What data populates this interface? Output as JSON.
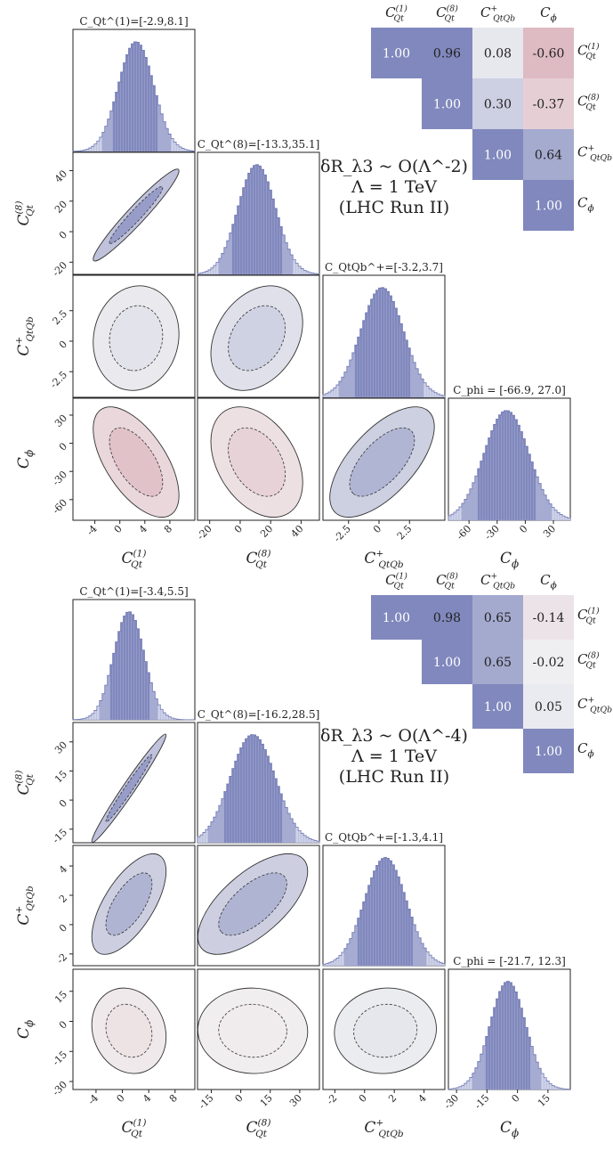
{
  "colors": {
    "blue_dark": "#8088bd",
    "blue_mid": "#a5abd1",
    "blue_light": "#cfd3e8",
    "axis": "#222222",
    "red_mid": "#dcb1bd",
    "red_strong": "#d49aa7"
  },
  "chart_data": [
    {
      "type": "corner_plot",
      "parameters": [
        "C_Qt^(1)",
        "C_Qt^(8)",
        "C_QtQb^+",
        "C_phi"
      ],
      "note_lines": [
        "δR_λ3 ~ O(Λ^-2)",
        "Λ = 1 TeV",
        "(LHC Run II)"
      ],
      "marginal_titles": [
        "C_Qt^(1)=[-2.9,8.1]",
        "C_Qt^(8)=[-13.3,35.1]",
        "C_QtQb^+=[-3.2,3.7]",
        "C_phi = [-66.9, 27.0]"
      ],
      "marginals": [
        {
          "mean": 2.6,
          "sigma": 2.8,
          "interval": [
            -2.9,
            8.1
          ],
          "xlim": [
            -7.5,
            12
          ]
        },
        {
          "mean": 10.9,
          "sigma": 12.3,
          "interval": [
            -13.3,
            35.1
          ],
          "xlim": [
            -28,
            52
          ]
        },
        {
          "mean": 0.25,
          "sigma": 1.75,
          "interval": [
            -3.2,
            3.7
          ],
          "xlim": [
            -4.6,
            5.4
          ]
        },
        {
          "mean": -20,
          "sigma": 24,
          "interval": [
            -66.9,
            27.0
          ],
          "xlim": [
            -82,
            48
          ]
        }
      ],
      "ticks": [
        [
          -4,
          0,
          4,
          8
        ],
        [
          -20,
          0,
          20,
          40
        ],
        [
          -2.5,
          0.0,
          2.5
        ],
        [
          -60,
          -30,
          0,
          30
        ]
      ],
      "correlation_matrix": [
        [
          1.0,
          0.96,
          0.08,
          -0.6
        ],
        [
          0.96,
          1.0,
          0.3,
          -0.37
        ],
        [
          0.08,
          0.3,
          1.0,
          0.64
        ],
        [
          -0.6,
          -0.37,
          0.64,
          1.0
        ]
      ],
      "correlation_labels": [
        [
          "1.00",
          "0.96",
          "0.08",
          "-0.60"
        ],
        [
          "",
          "1.00",
          "0.30",
          "-0.37"
        ],
        [
          "",
          "",
          "1.00",
          "0.64"
        ],
        [
          "",
          "",
          "",
          "1.00"
        ]
      ]
    },
    {
      "type": "corner_plot",
      "parameters": [
        "C_Qt^(1)",
        "C_Qt^(8)",
        "C_QtQb^+",
        "C_phi"
      ],
      "note_lines": [
        "δR_λ3 ~ O(Λ^-4)",
        "Λ = 1 TeV",
        "(LHC Run II)"
      ],
      "marginal_titles": [
        "C_Qt^(1)=[-3.4,5.5]",
        "C_Qt^(8)=[-16.2,28.5]",
        "C_QtQb^+=[-1.3,4.1]",
        "C_phi = [-21.7, 12.3]"
      ],
      "marginals": [
        {
          "mean": 1.0,
          "sigma": 2.3,
          "interval": [
            -3.4,
            5.5
          ],
          "xlim": [
            -7.5,
            11
          ]
        },
        {
          "mean": 6.1,
          "sigma": 11.4,
          "interval": [
            -16.2,
            28.5
          ],
          "xlim": [
            -22,
            40
          ]
        },
        {
          "mean": 1.4,
          "sigma": 1.4,
          "interval": [
            -1.3,
            4.1
          ],
          "xlim": [
            -2.8,
            5.4
          ]
        },
        {
          "mean": -4.7,
          "sigma": 8.7,
          "interval": [
            -21.7,
            12.3
          ],
          "xlim": [
            -34,
            26
          ]
        }
      ],
      "ticks": [
        [
          -4,
          0,
          4,
          8
        ],
        [
          -15,
          0,
          15,
          30
        ],
        [
          -2,
          0,
          2,
          4
        ],
        [
          -30,
          -15,
          0,
          15
        ]
      ],
      "correlation_matrix": [
        [
          1.0,
          0.98,
          0.65,
          -0.14
        ],
        [
          0.98,
          1.0,
          0.65,
          -0.02
        ],
        [
          0.65,
          0.65,
          1.0,
          0.05
        ],
        [
          -0.14,
          -0.02,
          0.05,
          1.0
        ]
      ],
      "correlation_labels": [
        [
          "1.00",
          "0.98",
          "0.65",
          "-0.14"
        ],
        [
          "",
          "1.00",
          "0.65",
          "-0.02"
        ],
        [
          "",
          "",
          "1.00",
          "0.05"
        ],
        [
          "",
          "",
          "",
          "1.00"
        ]
      ]
    }
  ]
}
